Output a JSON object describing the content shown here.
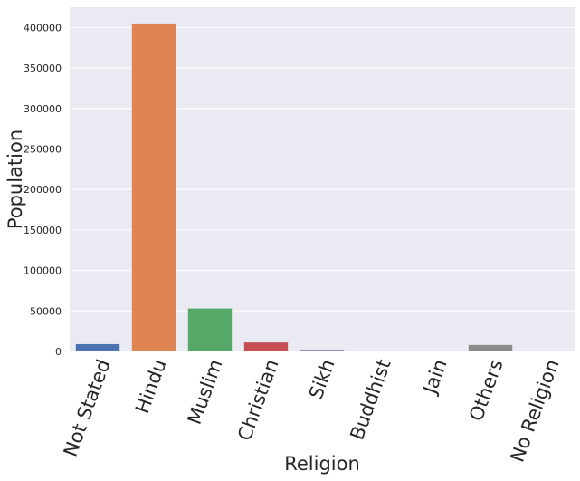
{
  "chart_data": {
    "type": "bar",
    "xlabel": "Religion",
    "ylabel": "Population",
    "categories": [
      "Not Stated",
      "Hindu",
      "Muslim",
      "Christian",
      "Sikh",
      "Buddhist",
      "Jain",
      "Others",
      "No Religion"
    ],
    "values": [
      9000,
      405000,
      53000,
      11000,
      2000,
      1000,
      1000,
      8000,
      500
    ],
    "colors": [
      "#4c72b0",
      "#dd8452",
      "#55a868",
      "#c44e52",
      "#8172b3",
      "#937860",
      "#da8bc3",
      "#8c8c8c",
      "#ccb974"
    ],
    "ylim": [
      0,
      425000
    ],
    "yticks": [
      0,
      50000,
      100000,
      150000,
      200000,
      250000,
      300000,
      350000,
      400000
    ],
    "ytick_labels": [
      "0",
      "50000",
      "100000",
      "150000",
      "200000",
      "250000",
      "300000",
      "350000",
      "400000"
    ],
    "grid": true,
    "background": "#eaeaf2"
  }
}
